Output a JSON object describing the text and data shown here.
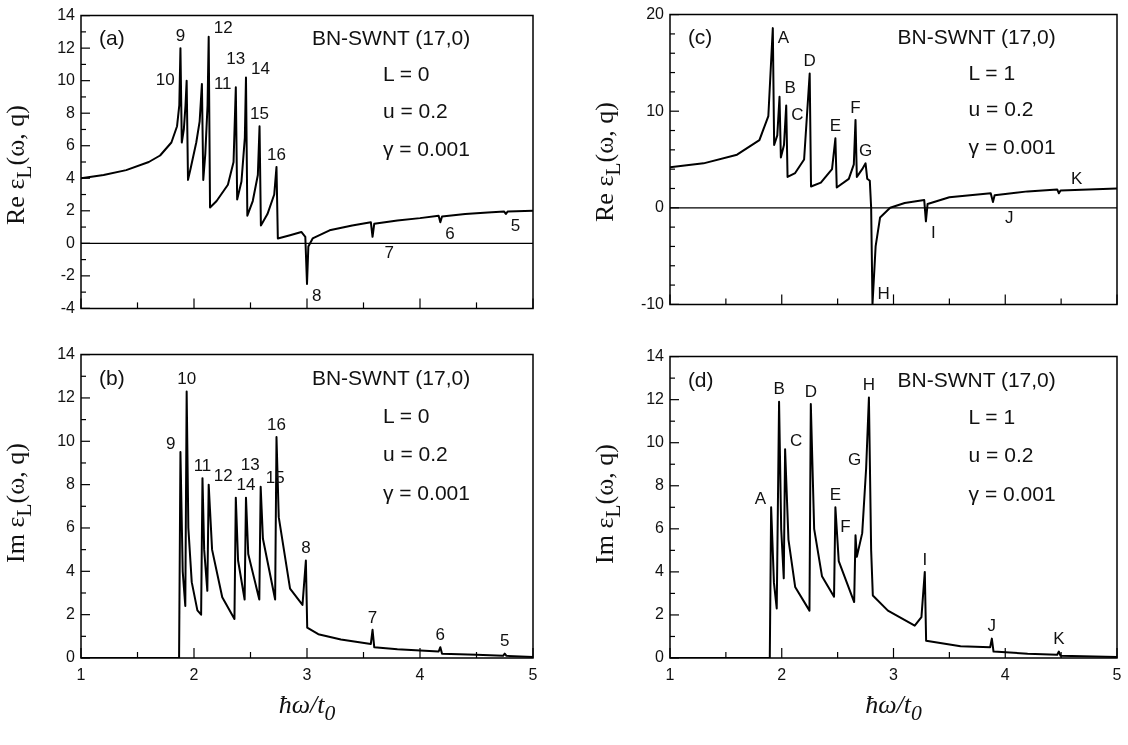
{
  "chart_data": [
    {
      "type": "line",
      "ylabel": "Re ε$_{L}$(ω, q)",
      "xlim": [
        1,
        5
      ],
      "ylim": [
        -4,
        14
      ],
      "tick_labels": "y",
      "xticks": [
        1,
        {
          "value": 1.5,
          "label": null
        },
        2,
        {
          "value": 2.5,
          "label": null
        },
        3,
        {
          "value": 3.5,
          "label": null
        },
        4,
        {
          "value": 4.5,
          "label": null
        },
        5
      ],
      "yticks": [
        -4,
        {
          "value": -3,
          "label": null
        },
        -2,
        {
          "value": -1,
          "label": null
        },
        0,
        {
          "value": 1,
          "label": null
        },
        2,
        {
          "value": 3,
          "label": null
        },
        4,
        {
          "value": 5,
          "label": null
        },
        6,
        {
          "value": 7,
          "label": null
        },
        8,
        {
          "value": 9,
          "label": null
        },
        10,
        {
          "value": 11,
          "label": null
        },
        12,
        {
          "value": 13,
          "label": null
        },
        14
      ],
      "color": "#000000",
      "x": [
        1,
        1.2,
        1.4,
        1.6,
        1.7,
        1.8,
        1.85,
        1.87,
        1.88,
        1.892,
        1.91,
        1.925,
        1.935,
        1.947,
        1.97,
        2.02,
        2.05,
        2.07,
        2.082,
        2.1,
        2.12,
        2.13,
        2.142,
        2.2,
        2.3,
        2.35,
        2.37,
        2.382,
        2.42,
        2.45,
        2.46,
        2.472,
        2.52,
        2.565,
        2.58,
        2.592,
        2.65,
        2.71,
        2.73,
        2.742,
        2.85,
        2.95,
        2.985,
        3.0,
        3.012,
        3.05,
        3.2,
        3.4,
        3.565,
        3.58,
        3.595,
        3.8,
        4.0,
        4.165,
        4.18,
        4.195,
        4.4,
        4.6,
        4.745,
        4.76,
        4.775,
        5
      ],
      "values": [
        4.0,
        4.2,
        4.5,
        5.0,
        5.4,
        6.2,
        7.2,
        8.5,
        12.0,
        6.2,
        7.0,
        8.5,
        10.0,
        3.9,
        4.6,
        6.2,
        7.5,
        9.8,
        3.9,
        5.5,
        8.5,
        12.7,
        2.2,
        2.6,
        3.6,
        5.0,
        9.6,
        2.7,
        3.8,
        6.5,
        10.2,
        1.7,
        2.6,
        4.2,
        7.2,
        1.1,
        1.8,
        3.0,
        4.7,
        0.3,
        0.5,
        0.7,
        0.4,
        -2.5,
        -0.2,
        0.3,
        0.8,
        1.1,
        1.3,
        0.4,
        1.2,
        1.4,
        1.55,
        1.7,
        1.3,
        1.65,
        1.8,
        1.9,
        1.95,
        1.8,
        1.95,
        2.0
      ],
      "ref_lines": [
        {
          "axis": "y",
          "value": 0,
          "color": "#000000"
        }
      ],
      "annotations": [
        "(a)",
        "BN-SWNT (17,0)",
        "L = 0",
        "u = 0.2",
        "γ = 0.001",
        {
          "text": "9",
          "x": 1.88,
          "y": 12.0
        },
        {
          "text": "10",
          "x": 1.935,
          "y": 10.0
        },
        {
          "text": "11",
          "x": 2.07,
          "y": 9.8
        },
        {
          "text": "12",
          "x": 2.13,
          "y": 12.7
        },
        {
          "text": "13",
          "x": 2.37,
          "y": 9.6
        },
        {
          "text": "14",
          "x": 2.46,
          "y": 10.2
        },
        {
          "text": "15",
          "x": 2.58,
          "y": 7.2
        },
        {
          "text": "16",
          "x": 2.73,
          "y": 4.7
        },
        {
          "text": "8",
          "x": 3.0,
          "y": -2.5
        },
        {
          "text": "7",
          "x": 3.58,
          "y": 0.4
        },
        {
          "text": "6",
          "x": 4.18,
          "y": 1.3
        },
        {
          "text": "5",
          "x": 4.76,
          "y": 1.8
        }
      ]
    },
    {
      "type": "line",
      "ylabel": "Im ε$_{L}$(ω, q)",
      "xlabel": "ħω/t$_{0}$",
      "xlim": [
        1,
        5
      ],
      "ylim": [
        0,
        14
      ],
      "xticks": [
        1,
        {
          "value": 1.5,
          "label": null
        },
        2,
        {
          "value": 2.5,
          "label": null
        },
        3,
        {
          "value": 3.5,
          "label": null
        },
        4,
        {
          "value": 4.5,
          "label": null
        },
        5
      ],
      "yticks": [
        0,
        {
          "value": 1,
          "label": null
        },
        2,
        {
          "value": 3,
          "label": null
        },
        4,
        {
          "value": 5,
          "label": null
        },
        6,
        {
          "value": 7,
          "label": null
        },
        8,
        {
          "value": 9,
          "label": null
        },
        10,
        {
          "value": 11,
          "label": null
        },
        12,
        {
          "value": 13,
          "label": null
        },
        14
      ],
      "color": "#000000",
      "x": [
        1,
        1.868,
        1.88,
        1.9,
        1.923,
        1.935,
        1.95,
        1.98,
        2.03,
        2.063,
        2.075,
        2.09,
        2.118,
        2.13,
        2.16,
        2.25,
        2.358,
        2.37,
        2.39,
        2.448,
        2.46,
        2.48,
        2.578,
        2.59,
        2.61,
        2.718,
        2.73,
        2.75,
        2.85,
        2.96,
        2.99,
        3.002,
        3.1,
        3.3,
        3.565,
        3.58,
        3.595,
        3.8,
        4.165,
        4.18,
        4.195,
        4.5,
        4.735,
        4.75,
        4.765,
        5
      ],
      "values": [
        0,
        0,
        9.5,
        4.0,
        2.4,
        12.3,
        6.0,
        3.5,
        2.2,
        2.0,
        8.3,
        5.0,
        3.1,
        8.0,
        5.0,
        2.8,
        1.8,
        7.4,
        4.5,
        2.7,
        7.4,
        4.8,
        2.7,
        7.9,
        5.5,
        2.7,
        10.2,
        6.5,
        3.2,
        2.45,
        4.5,
        1.4,
        1.1,
        0.85,
        0.65,
        1.3,
        0.5,
        0.4,
        0.3,
        0.5,
        0.2,
        0.15,
        0.1,
        0.2,
        0.1,
        0.05
      ],
      "annotations": [
        "(b)",
        "BN-SWNT (17,0)",
        "L = 0",
        "u = 0.2",
        "γ = 0.001",
        {
          "text": "9",
          "x": 1.88,
          "y": 9.5
        },
        {
          "text": "10",
          "x": 1.935,
          "y": 12.3
        },
        {
          "text": "11",
          "x": 2.075,
          "y": 8.3
        },
        {
          "text": "12",
          "x": 2.13,
          "y": 8.0
        },
        {
          "text": "13",
          "x": 2.37,
          "y": 7.4
        },
        {
          "text": "14",
          "x": 2.46,
          "y": 7.4
        },
        {
          "text": "15",
          "x": 2.59,
          "y": 7.9
        },
        {
          "text": "16",
          "x": 2.73,
          "y": 10.2
        },
        {
          "text": "8",
          "x": 2.99,
          "y": 4.5
        },
        {
          "text": "7",
          "x": 3.58,
          "y": 1.3
        },
        {
          "text": "6",
          "x": 4.18,
          "y": 0.5
        },
        {
          "text": "5",
          "x": 4.75,
          "y": 0.2
        }
      ]
    },
    {
      "type": "line",
      "ylabel": "Re ε$_{L}$(ω, q)",
      "xlim": [
        1,
        5
      ],
      "ylim": [
        -10,
        20
      ],
      "tick_labels": "y",
      "xticks": [
        1,
        {
          "value": 1.5,
          "label": null
        },
        2,
        {
          "value": 2.5,
          "label": null
        },
        3,
        {
          "value": 3.5,
          "label": null
        },
        4,
        {
          "value": 4.5,
          "label": null
        },
        5
      ],
      "yticks": [
        -10,
        {
          "value": -8,
          "label": null
        },
        {
          "value": -6,
          "label": null
        },
        {
          "value": -4,
          "label": null
        },
        {
          "value": -2,
          "label": null
        },
        0,
        {
          "value": 2,
          "label": null
        },
        {
          "value": 4,
          "label": null
        },
        {
          "value": 6,
          "label": null
        },
        {
          "value": 8,
          "label": null
        },
        10,
        {
          "value": 12,
          "label": null
        },
        {
          "value": 14,
          "label": null
        },
        {
          "value": 16,
          "label": null
        },
        {
          "value": 18,
          "label": null
        },
        20
      ],
      "color": "#000000",
      "x": [
        1,
        1.3,
        1.6,
        1.8,
        1.88,
        1.92,
        1.932,
        1.96,
        1.98,
        1.992,
        2.02,
        2.04,
        2.052,
        2.12,
        2.2,
        2.25,
        2.262,
        2.35,
        2.45,
        2.48,
        2.492,
        2.6,
        2.645,
        2.66,
        2.672,
        2.72,
        2.75,
        2.765,
        2.788,
        2.8,
        2.812,
        2.84,
        2.88,
        2.97,
        3.1,
        3.275,
        3.29,
        3.305,
        3.5,
        3.87,
        3.89,
        3.905,
        4.2,
        4.465,
        4.48,
        4.495,
        5
      ],
      "values": [
        4.2,
        4.6,
        5.5,
        7.0,
        9.5,
        18.6,
        6.5,
        7.5,
        11.5,
        5.2,
        6.5,
        10.6,
        3.2,
        3.6,
        5.0,
        13.9,
        2.2,
        2.6,
        4.0,
        7.2,
        2.1,
        3.0,
        4.5,
        9.1,
        3.2,
        4.0,
        4.6,
        3.0,
        2.8,
        0,
        -10,
        -4,
        -1,
        0,
        0.5,
        0.8,
        -1.4,
        0.4,
        1.1,
        1.5,
        0.6,
        1.3,
        1.7,
        1.9,
        1.5,
        1.8,
        2.0
      ],
      "ref_lines": [
        {
          "axis": "y",
          "value": 0,
          "color": "#000000"
        }
      ],
      "annotations": [
        "(c)",
        "BN-SWNT (17,0)",
        "L = 1",
        "u = 0.2",
        "γ = 0.001",
        {
          "text": "A",
          "x": 1.92,
          "y": 18.6
        },
        {
          "text": "B",
          "x": 1.98,
          "y": 11.5
        },
        {
          "text": "C",
          "x": 2.04,
          "y": 10.6
        },
        {
          "text": "D",
          "x": 2.25,
          "y": 13.9
        },
        {
          "text": "E",
          "x": 2.48,
          "y": 7.2
        },
        {
          "text": "F",
          "x": 2.66,
          "y": 9.1
        },
        {
          "text": "G",
          "x": 2.75,
          "y": 4.6
        },
        {
          "text": "H",
          "x": 2.812,
          "y": -10
        },
        {
          "text": "I",
          "x": 3.29,
          "y": -1.4
        },
        {
          "text": "J",
          "x": 3.89,
          "y": 0.6
        },
        {
          "text": "K",
          "x": 4.48,
          "y": 1.5
        }
      ]
    },
    {
      "type": "line",
      "ylabel": "Im ε$_{L}$(ω, q)",
      "xlabel": "ħω/t$_{0}$",
      "xlim": [
        1,
        5
      ],
      "ylim": [
        0,
        14
      ],
      "xticks": [
        1,
        {
          "value": 1.5,
          "label": null
        },
        2,
        {
          "value": 2.5,
          "label": null
        },
        3,
        {
          "value": 3.5,
          "label": null
        },
        4,
        {
          "value": 4.5,
          "label": null
        },
        5
      ],
      "yticks": [
        0,
        {
          "value": 1,
          "label": null
        },
        2,
        {
          "value": 3,
          "label": null
        },
        4,
        {
          "value": 5,
          "label": null
        },
        6,
        {
          "value": 7,
          "label": null
        },
        8,
        {
          "value": 9,
          "label": null
        },
        10,
        {
          "value": 11,
          "label": null
        },
        12,
        {
          "value": 13,
          "label": null
        },
        14
      ],
      "color": "#000000",
      "x": [
        1,
        1.893,
        1.905,
        1.93,
        1.955,
        1.976,
        1.995,
        2.018,
        2.03,
        2.06,
        2.12,
        2.248,
        2.26,
        2.29,
        2.36,
        2.468,
        2.48,
        2.51,
        2.648,
        2.66,
        2.672,
        2.72,
        2.755,
        2.78,
        2.8,
        2.815,
        2.95,
        3.19,
        3.25,
        3.28,
        3.292,
        3.6,
        3.865,
        3.88,
        3.895,
        4.2,
        4.465,
        4.48,
        4.495,
        5
      ],
      "values": [
        0,
        0,
        7.0,
        3.5,
        2.3,
        11.9,
        6.0,
        3.7,
        9.7,
        5.5,
        3.3,
        2.2,
        11.8,
        6.0,
        3.8,
        2.85,
        7.0,
        4.5,
        2.6,
        5.7,
        4.7,
        5.8,
        8.8,
        12.1,
        5.0,
        2.9,
        2.2,
        1.5,
        1.9,
        4.0,
        0.8,
        0.55,
        0.5,
        0.9,
        0.3,
        0.2,
        0.15,
        0.3,
        0.1,
        0.05
      ],
      "annotations": [
        "(d)",
        "BN-SWNT (17,0)",
        "L = 1",
        "u = 0.2",
        "γ = 0.001",
        {
          "text": "A",
          "x": 1.905,
          "y": 7.0
        },
        {
          "text": "B",
          "x": 1.976,
          "y": 11.9
        },
        {
          "text": "C",
          "x": 2.03,
          "y": 9.7
        },
        {
          "text": "D",
          "x": 2.26,
          "y": 11.8
        },
        {
          "text": "E",
          "x": 2.48,
          "y": 7.0
        },
        {
          "text": "F",
          "x": 2.66,
          "y": 5.7
        },
        {
          "text": "G",
          "x": 2.755,
          "y": 8.8
        },
        {
          "text": "H",
          "x": 2.78,
          "y": 12.1
        },
        {
          "text": "I",
          "x": 3.28,
          "y": 4.0
        },
        {
          "text": "J",
          "x": 3.88,
          "y": 0.9
        },
        {
          "text": "K",
          "x": 4.48,
          "y": 0.3
        }
      ]
    }
  ]
}
